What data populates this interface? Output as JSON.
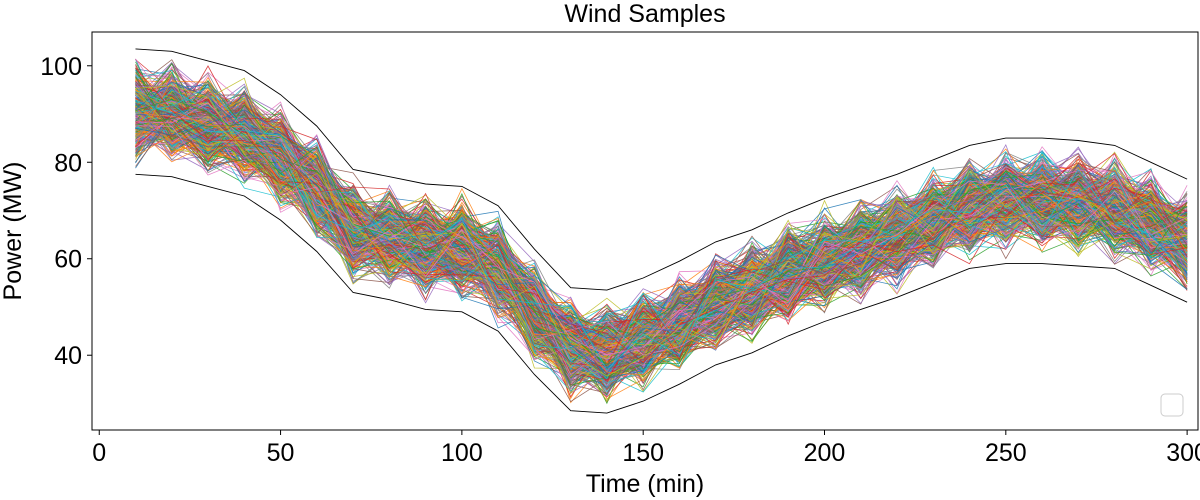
{
  "chart_data": {
    "type": "line",
    "title": "Wind Samples",
    "xlabel": "Time (min)",
    "ylabel": "Power (MW)",
    "xlim": [
      -2,
      303
    ],
    "ylim": [
      24.5,
      107
    ],
    "xticks": [
      0,
      50,
      100,
      150,
      200,
      250,
      300
    ],
    "yticks": [
      40,
      60,
      80,
      100
    ],
    "grid": false,
    "legend": "lower-right (empty)",
    "x": [
      10,
      20,
      30,
      40,
      50,
      60,
      70,
      80,
      90,
      100,
      110,
      120,
      130,
      140,
      150,
      160,
      170,
      180,
      190,
      200,
      210,
      220,
      230,
      240,
      250,
      260,
      270,
      280,
      290,
      300
    ],
    "envelope_upper": [
      103.5,
      103.0,
      101.0,
      99.0,
      94.0,
      87.5,
      78.5,
      77.0,
      75.5,
      75.0,
      71.0,
      62.0,
      54.0,
      53.5,
      56.0,
      59.5,
      63.5,
      66.0,
      69.5,
      72.5,
      75.0,
      77.5,
      80.5,
      83.5,
      85.0,
      85.0,
      84.5,
      83.5,
      80.0,
      76.5
    ],
    "envelope_lower": [
      77.5,
      77.0,
      75.0,
      73.0,
      68.0,
      61.5,
      53.0,
      51.5,
      49.5,
      49.0,
      45.0,
      36.0,
      28.5,
      28.0,
      30.5,
      34.0,
      38.0,
      40.5,
      44.0,
      47.0,
      49.5,
      52.0,
      55.0,
      58.0,
      59.0,
      59.0,
      58.5,
      58.0,
      54.5,
      51.0
    ],
    "samples": 500
  }
}
